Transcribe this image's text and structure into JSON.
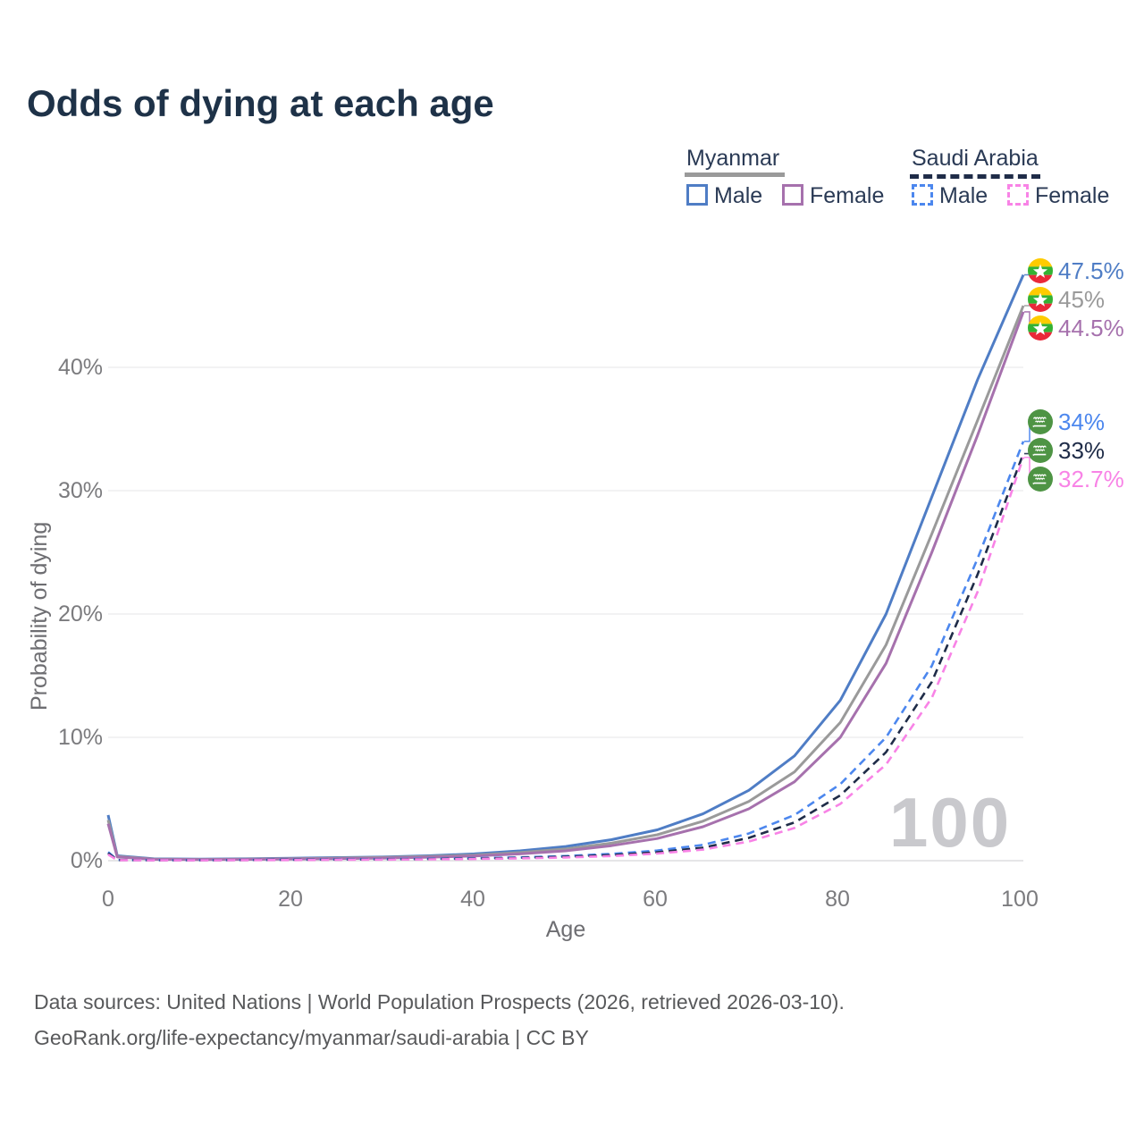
{
  "title": "Odds of dying at each age",
  "legend": {
    "groups": [
      {
        "name": "Myanmar",
        "line_style": "solid",
        "underline_color": "#9a9a9a",
        "items": [
          {
            "label": "Male",
            "color": "#4f7dc5"
          },
          {
            "label": "Female",
            "color": "#a671ad"
          }
        ]
      },
      {
        "name": "Saudi Arabia",
        "line_style": "dashed",
        "underline_color": "#1f2c48",
        "items": [
          {
            "label": "Male",
            "color": "#4c87ee"
          },
          {
            "label": "Female",
            "color": "#f883e6"
          }
        ]
      }
    ]
  },
  "end_labels": [
    {
      "value": "47.5%",
      "country": "Myanmar",
      "series": "Male",
      "color": "#4f7dc5"
    },
    {
      "value": "45%",
      "country": "Myanmar",
      "series": "Both sexes",
      "color": "#9a9a9a"
    },
    {
      "value": "44.5%",
      "country": "Myanmar",
      "series": "Female",
      "color": "#a671ad"
    },
    {
      "value": "34%",
      "country": "Saudi Arabia",
      "series": "Male",
      "color": "#4c87ee"
    },
    {
      "value": "33%",
      "country": "Saudi Arabia",
      "series": "Both sexes",
      "color": "#1f2c48"
    },
    {
      "value": "32.7%",
      "country": "Saudi Arabia",
      "series": "Female",
      "color": "#f883e6"
    }
  ],
  "watermark": "100",
  "footer": {
    "line1": "Data sources: United Nations | World Population Prospects (2026, retrieved 2026-03-10).",
    "line2": "GeoRank.org/life-expectancy/myanmar/saudi-arabia | CC BY"
  },
  "chart_data": {
    "type": "line",
    "title": "Odds of dying at each age",
    "xlabel": "Age",
    "ylabel": "Probability of dying",
    "xlim": [
      0,
      100
    ],
    "ylim": [
      0,
      0.5
    ],
    "x_ticks": [
      0,
      20,
      40,
      60,
      80,
      100
    ],
    "y_ticks": [
      "0%",
      "10%",
      "20%",
      "30%",
      "40%"
    ],
    "grid": "horizontal",
    "legend_position": "top-right",
    "x": [
      0,
      1,
      5,
      10,
      15,
      20,
      25,
      30,
      35,
      40,
      45,
      50,
      55,
      60,
      65,
      70,
      75,
      80,
      85,
      90,
      95,
      100
    ],
    "series": [
      {
        "name": "Myanmar Male",
        "country": "Myanmar",
        "sex": "Male",
        "color": "#4f7dc5",
        "dash": "solid",
        "end_value_pct": 47.5,
        "values": [
          0.037,
          0.004,
          0.0015,
          0.0012,
          0.0015,
          0.002,
          0.0025,
          0.003,
          0.004,
          0.0055,
          0.008,
          0.0115,
          0.017,
          0.025,
          0.038,
          0.057,
          0.085,
          0.13,
          0.2,
          0.295,
          0.39,
          0.475
        ]
      },
      {
        "name": "Myanmar Both sexes",
        "country": "Myanmar",
        "sex": "Both",
        "color": "#9a9a9a",
        "dash": "solid",
        "end_value_pct": 45,
        "values": [
          0.033,
          0.0035,
          0.0013,
          0.001,
          0.0013,
          0.0017,
          0.0021,
          0.0026,
          0.0034,
          0.0046,
          0.0066,
          0.0095,
          0.0142,
          0.021,
          0.032,
          0.048,
          0.072,
          0.112,
          0.175,
          0.265,
          0.357,
          0.45
        ]
      },
      {
        "name": "Myanmar Female",
        "country": "Myanmar",
        "sex": "Female",
        "color": "#a671ad",
        "dash": "solid",
        "end_value_pct": 44.5,
        "values": [
          0.03,
          0.003,
          0.0011,
          0.0009,
          0.0011,
          0.0014,
          0.0017,
          0.0021,
          0.0028,
          0.0038,
          0.0055,
          0.008,
          0.0122,
          0.018,
          0.0275,
          0.042,
          0.064,
          0.1,
          0.16,
          0.25,
          0.345,
          0.445
        ]
      },
      {
        "name": "Saudi Arabia Male",
        "country": "Saudi Arabia",
        "sex": "Male",
        "color": "#4c87ee",
        "dash": "dashed",
        "end_value_pct": 34,
        "values": [
          0.007,
          0.0006,
          0.0004,
          0.0004,
          0.0006,
          0.0009,
          0.0011,
          0.0013,
          0.0016,
          0.002,
          0.0027,
          0.0038,
          0.0055,
          0.0082,
          0.0128,
          0.022,
          0.037,
          0.062,
          0.1,
          0.158,
          0.245,
          0.34
        ]
      },
      {
        "name": "Saudi Arabia Both sexes",
        "country": "Saudi Arabia",
        "sex": "Both",
        "color": "#1f2c48",
        "dash": "dashed",
        "end_value_pct": 33,
        "values": [
          0.006,
          0.0005,
          0.00035,
          0.00035,
          0.0005,
          0.0007,
          0.0009,
          0.0011,
          0.0013,
          0.0017,
          0.0023,
          0.0032,
          0.0046,
          0.0068,
          0.0105,
          0.0185,
          0.031,
          0.053,
          0.088,
          0.145,
          0.232,
          0.33
        ]
      },
      {
        "name": "Saudi Arabia Female",
        "country": "Saudi Arabia",
        "sex": "Female",
        "color": "#f883e6",
        "dash": "dashed",
        "end_value_pct": 32.7,
        "values": [
          0.005,
          0.00045,
          0.0003,
          0.0003,
          0.0004,
          0.0005,
          0.0007,
          0.0009,
          0.0011,
          0.0014,
          0.0019,
          0.0026,
          0.0038,
          0.0058,
          0.009,
          0.0155,
          0.0265,
          0.046,
          0.078,
          0.132,
          0.218,
          0.327
        ]
      }
    ]
  }
}
